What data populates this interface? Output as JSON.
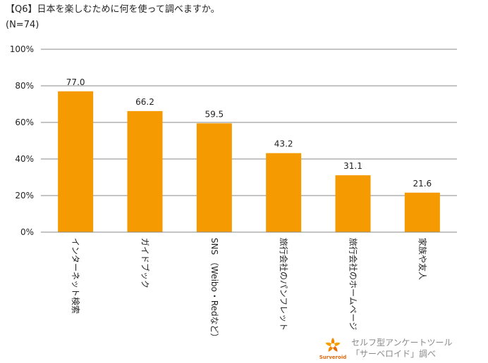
{
  "chart_data": {
    "type": "bar",
    "title": "【Q6】日本を楽しむために何を使って調べますか。",
    "subtitle": "(N=74)",
    "categories": [
      "インターネット検索",
      "ガイドブック",
      "SNS （Weibo・Redなど）",
      "旅行会社のパンフレット",
      "旅行会社のホームページ",
      "家族や友人"
    ],
    "values": [
      77.0,
      66.2,
      59.5,
      43.2,
      31.1,
      21.6
    ],
    "value_labels": [
      "77.0",
      "66.2",
      "59.5",
      "43.2",
      "31.1",
      "21.6"
    ],
    "ytick_labels": [
      "0%",
      "20%",
      "40%",
      "60%",
      "80%",
      "100%"
    ],
    "ylim": [
      0,
      100
    ],
    "xlabel": "",
    "ylabel": "",
    "grid": true,
    "bar_color": "#f59a00",
    "grid_color": "#888888"
  },
  "credit": {
    "line1": "セルフ型アンケートツール",
    "line2": "「サーベロイド」調べ",
    "logo_text": "Surveroid"
  }
}
